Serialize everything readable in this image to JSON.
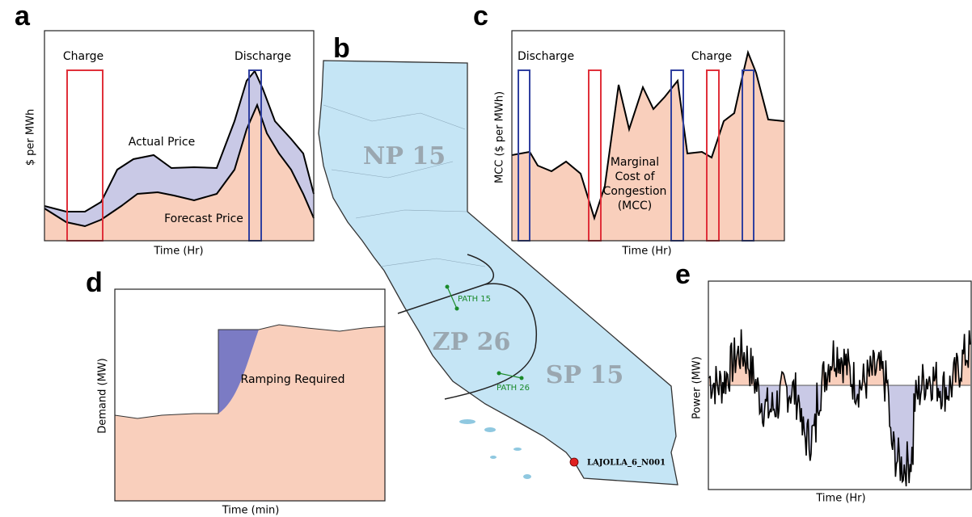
{
  "panels": {
    "a": {
      "label": "a",
      "y_axis": "$ per MWh",
      "x_axis": "Time (Hr)",
      "charge": "Charge",
      "discharge": "Discharge",
      "actual": "Actual Price",
      "forecast": "Forecast Price"
    },
    "b": {
      "label": "b",
      "zones": [
        "NP 15",
        "ZP 26",
        "SP 15"
      ],
      "paths": [
        "PATH 15",
        "PATH 26"
      ],
      "node": "LAJOLLA_6_N001"
    },
    "c": {
      "label": "c",
      "y_axis": "MCC ($ per MWh)",
      "x_axis": "Time (Hr)",
      "discharge": "Discharge",
      "charge": "Charge",
      "annotation": [
        "Marginal",
        "Cost of",
        "Congestion",
        "(MCC)"
      ]
    },
    "d": {
      "label": "d",
      "y_axis": "Demand (MW)",
      "x_axis": "Time (min)",
      "annotation": "Ramping Required"
    },
    "e": {
      "label": "e",
      "y_axis": "Power (MW)",
      "x_axis": "Time (Hr)"
    }
  }
}
